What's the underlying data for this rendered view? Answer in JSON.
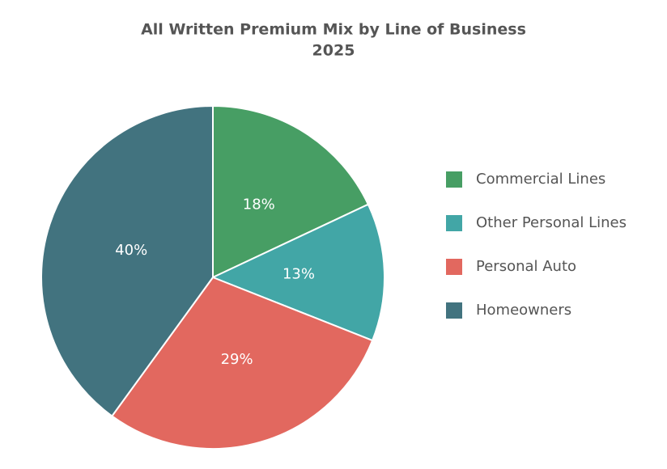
{
  "chart_data": {
    "type": "pie",
    "title": "All Written Premium Mix by Line of Business",
    "subtitle": "2025",
    "categories": [
      "Commercial Lines",
      "Other Personal Lines",
      "Personal Auto",
      "Homeowners"
    ],
    "values": [
      18,
      13,
      29,
      40
    ],
    "value_labels": [
      "18%",
      "13%",
      "29%",
      "40%"
    ],
    "colors": [
      "#479e64",
      "#42a6a6",
      "#e2685f",
      "#42737f"
    ],
    "legend": "right"
  }
}
